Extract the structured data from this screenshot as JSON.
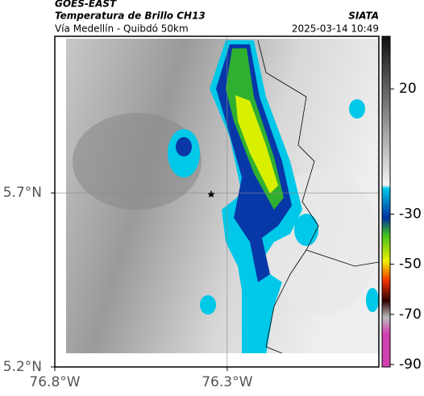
{
  "header": {
    "satellite": "GOES-EAST",
    "title": "Temperatura de Brillo CH13",
    "source": "SIATA",
    "subtitle": "Vía Medellín - Quibdó 50km",
    "datetime": "2025-03-14 10:49"
  },
  "map": {
    "lonlim": [
      -76.8,
      -75.86
    ],
    "latlim": [
      5.2,
      6.15
    ],
    "lon_ticks": [
      {
        "value": -76.8,
        "label": "76.8°W"
      },
      {
        "value": -76.3,
        "label": "76.3°W"
      }
    ],
    "lat_ticks": [
      {
        "value": 5.7,
        "label": "5.7°N"
      },
      {
        "value": 5.2,
        "label": "5.2°N"
      }
    ],
    "grid": true
  },
  "colorbar": {
    "range": [
      -91,
      41
    ],
    "ticks": [
      20,
      -30,
      -50,
      -70,
      -90
    ]
  }
}
